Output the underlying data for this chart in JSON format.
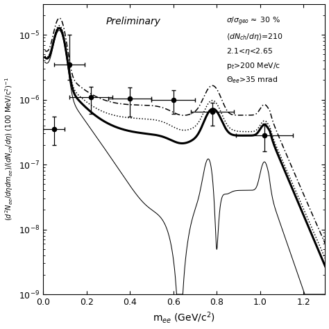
{
  "title": "Preliminary",
  "xlabel": "m$_{ee}$ (GeV/c$^{2}$)",
  "ylabel": "$(d^{2}N_{ee}/d\\eta dm_{ee})/(dN_{ch}/d\\eta)$ (100 MeV/c$^{2}$)$^{-1}$",
  "xlim": [
    0.0,
    1.3
  ],
  "data_points": {
    "x": [
      0.05,
      0.12,
      0.22,
      0.4,
      0.6,
      0.78,
      1.02
    ],
    "y": [
      3.5e-07,
      3.5e-06,
      1.1e-06,
      1.05e-06,
      1e-06,
      6.5e-07,
      2.8e-07
    ],
    "xerr": [
      0.05,
      0.07,
      0.1,
      0.1,
      0.1,
      0.1,
      0.13
    ],
    "yerr_lo": [
      1.5e-07,
      1.5e-06,
      5e-07,
      5e-07,
      4e-07,
      2.5e-07,
      1.2e-07
    ],
    "yerr_hi": [
      2e-07,
      6.5e-06,
      5e-07,
      5e-07,
      4e-07,
      2.5e-07,
      1.5e-07
    ]
  },
  "background_color": "#ffffff"
}
